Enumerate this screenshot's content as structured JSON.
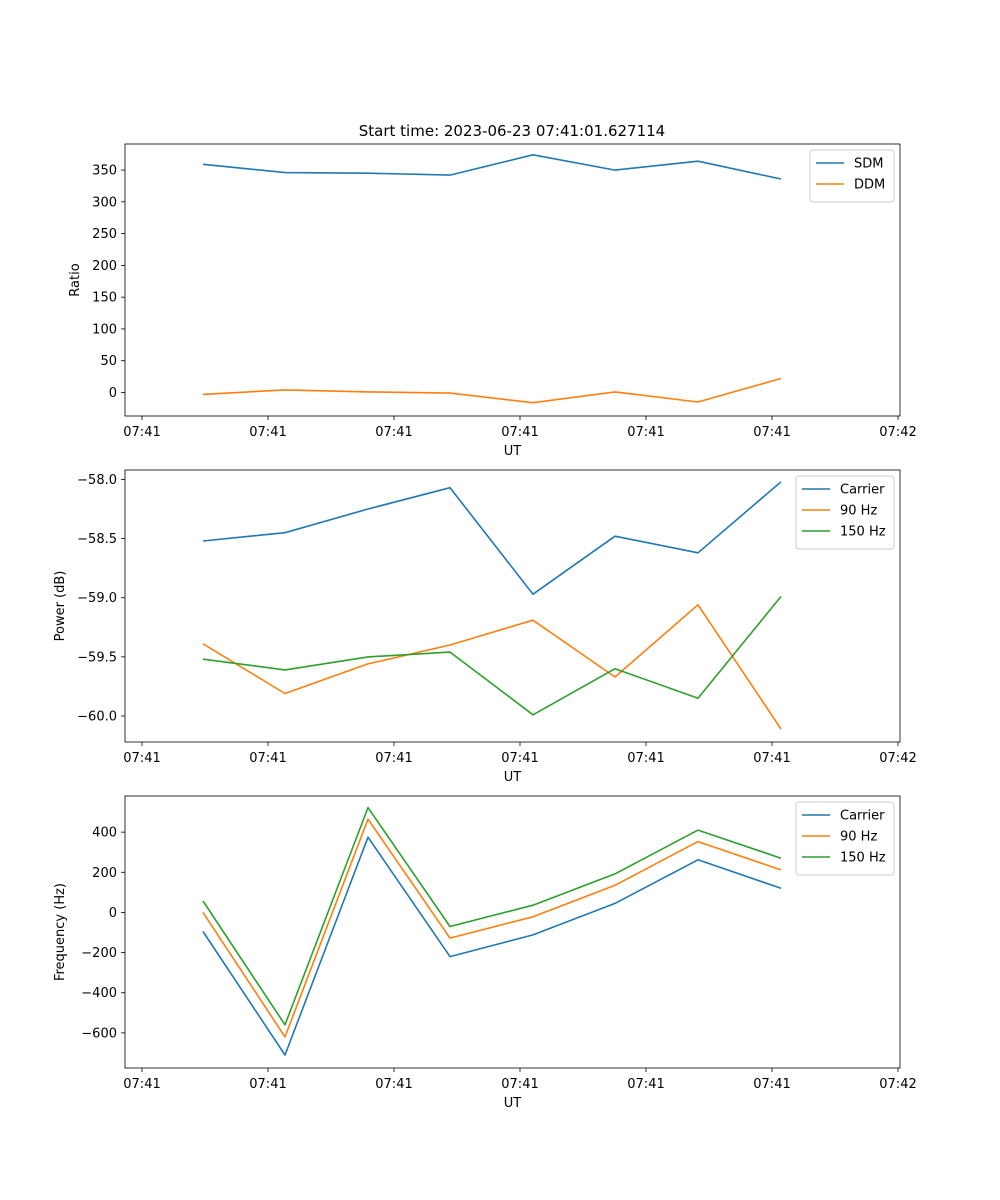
{
  "figure": {
    "title": "Start time: 2023-06-23 07:41:01.627114"
  },
  "chart_data": [
    {
      "type": "line",
      "title": "Start time: 2023-06-23 07:41:01.627114",
      "xlabel": "UT",
      "ylabel": "Ratio",
      "x_tick_labels": [
        "07:41",
        "07:41",
        "07:41",
        "07:41",
        "07:41",
        "07:41",
        "07:42"
      ],
      "y_ticks": [
        0,
        50,
        100,
        150,
        200,
        250,
        300,
        350
      ],
      "y_tick_labels": [
        "0",
        "50",
        "100",
        "150",
        "200",
        "250",
        "300",
        "350"
      ],
      "ylim": [
        -37,
        391
      ],
      "legend_position": "top-right",
      "series": [
        {
          "name": "SDM",
          "color": "#1f77b4",
          "values": [
            359,
            346,
            345,
            342,
            374,
            350,
            364,
            336
          ]
        },
        {
          "name": "DDM",
          "color": "#ff7f0e",
          "values": [
            -3,
            4,
            1,
            -1,
            -16,
            1,
            -15,
            22
          ]
        }
      ]
    },
    {
      "type": "line",
      "title": "",
      "xlabel": "UT",
      "ylabel": "Power (dB)",
      "x_tick_labels": [
        "07:41",
        "07:41",
        "07:41",
        "07:41",
        "07:41",
        "07:41",
        "07:42"
      ],
      "y_ticks": [
        -58.0,
        -58.5,
        -59.0,
        -59.5,
        -60.0
      ],
      "y_tick_labels": [
        "−58.0",
        "−58.5",
        "−59.0",
        "−59.5",
        "−60.0"
      ],
      "ylim": [
        -60.22,
        -57.92
      ],
      "legend_position": "top-right",
      "series": [
        {
          "name": "Carrier",
          "color": "#1f77b4",
          "values": [
            -58.52,
            -58.45,
            -58.25,
            -58.07,
            -58.97,
            -58.48,
            -58.62,
            -58.02
          ]
        },
        {
          "name": "90 Hz",
          "color": "#ff7f0e",
          "values": [
            -59.39,
            -59.81,
            -59.56,
            -59.4,
            -59.19,
            -59.67,
            -59.06,
            -60.11
          ]
        },
        {
          "name": "150 Hz",
          "color": "#2ca02c",
          "values": [
            -59.52,
            -59.61,
            -59.5,
            -59.46,
            -59.99,
            -59.6,
            -59.85,
            -58.99
          ]
        }
      ]
    },
    {
      "type": "line",
      "title": "",
      "xlabel": "UT",
      "ylabel": "Frequency (Hz)",
      "x_tick_labels": [
        "07:41",
        "07:41",
        "07:41",
        "07:41",
        "07:41",
        "07:41",
        "07:42"
      ],
      "y_ticks": [
        400,
        200,
        0,
        -200,
        -400,
        -600
      ],
      "y_tick_labels": [
        "400",
        "200",
        "0",
        "−200",
        "−400",
        "−600"
      ],
      "ylim": [
        -775,
        580
      ],
      "legend_position": "top-right",
      "series": [
        {
          "name": "Carrier",
          "color": "#1f77b4",
          "values": [
            -95,
            -710,
            375,
            -220,
            -112,
            45,
            262,
            120
          ]
        },
        {
          "name": "90 Hz",
          "color": "#ff7f0e",
          "values": [
            0,
            -620,
            465,
            -128,
            -22,
            135,
            353,
            212
          ]
        },
        {
          "name": "150 Hz",
          "color": "#2ca02c",
          "values": [
            57,
            -560,
            522,
            -70,
            36,
            192,
            410,
            270
          ]
        }
      ]
    }
  ]
}
